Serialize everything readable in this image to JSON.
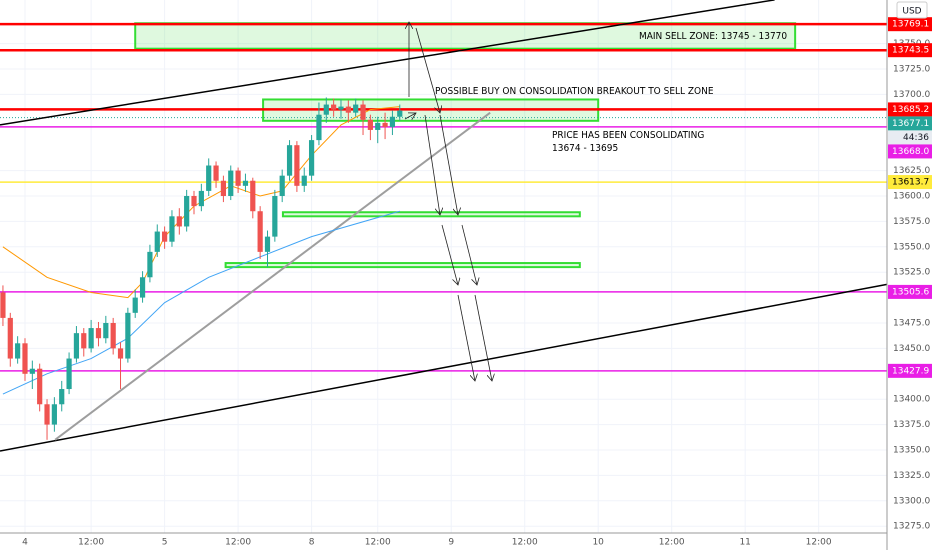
{
  "chart_data": {
    "type": "candlestick",
    "currency": "USD",
    "x": [
      0,
      1,
      2,
      3,
      4,
      5,
      6,
      7,
      8,
      9,
      10,
      11,
      12,
      13,
      14,
      15,
      16,
      17,
      18,
      19,
      20,
      21,
      22,
      23,
      24,
      25,
      26,
      27,
      28,
      29,
      30,
      31,
      32,
      33,
      34,
      35,
      36,
      37,
      38,
      39,
      40,
      41,
      42,
      43,
      44,
      45,
      46,
      47,
      48,
      49,
      50,
      51,
      52,
      53,
      54
    ],
    "open": [
      13505,
      13480,
      13440,
      13455,
      13425,
      13430,
      13395,
      13375,
      13395,
      13410,
      13440,
      13465,
      13450,
      13470,
      13460,
      13475,
      13450,
      13440,
      13485,
      13500,
      13520,
      13545,
      13565,
      13555,
      13580,
      13570,
      13600,
      13590,
      13605,
      13630,
      13615,
      13600,
      13625,
      13610,
      13615,
      13585,
      13545,
      13560,
      13600,
      13620,
      13650,
      13610,
      13620,
      13655,
      13680,
      13690,
      13685,
      13688,
      13682,
      13690,
      13675,
      13665,
      13672,
      13668,
      13678
    ],
    "high": [
      13512,
      13485,
      13462,
      13460,
      13438,
      13435,
      13400,
      13402,
      13418,
      13446,
      13472,
      13470,
      13478,
      13476,
      13482,
      13480,
      13456,
      13490,
      13508,
      13526,
      13552,
      13572,
      13570,
      13586,
      13588,
      13606,
      13605,
      13612,
      13637,
      13634,
      13620,
      13630,
      13628,
      13622,
      13618,
      13590,
      13566,
      13606,
      13626,
      13655,
      13654,
      13628,
      13660,
      13692,
      13697,
      13696,
      13695,
      13694,
      13696,
      13694,
      13680,
      13678,
      13682,
      13684,
      13690
    ],
    "low": [
      13472,
      13432,
      13435,
      13418,
      13410,
      13388,
      13360,
      13368,
      13388,
      13405,
      13436,
      13442,
      13446,
      13452,
      13455,
      13444,
      13410,
      13436,
      13480,
      13495,
      13515,
      13540,
      13548,
      13550,
      13562,
      13565,
      13582,
      13585,
      13600,
      13608,
      13594,
      13596,
      13603,
      13604,
      13578,
      13538,
      13530,
      13555,
      13594,
      13615,
      13604,
      13604,
      13615,
      13650,
      13672,
      13678,
      13676,
      13672,
      13678,
      13660,
      13655,
      13652,
      13656,
      13660,
      13674
    ],
    "close": [
      13480,
      13440,
      13455,
      13425,
      13430,
      13395,
      13375,
      13395,
      13410,
      13440,
      13465,
      13450,
      13470,
      13460,
      13475,
      13450,
      13440,
      13485,
      13500,
      13520,
      13545,
      13565,
      13555,
      13580,
      13570,
      13600,
      13590,
      13605,
      13630,
      13615,
      13600,
      13625,
      13610,
      13615,
      13585,
      13545,
      13560,
      13600,
      13620,
      13650,
      13610,
      13620,
      13655,
      13680,
      13690,
      13685,
      13688,
      13682,
      13690,
      13675,
      13665,
      13672,
      13668,
      13678,
      13684
    ],
    "up_color": "#26a69a",
    "down_color": "#ef5350",
    "lines": [
      {
        "color": "#ff9800",
        "x": [
          0,
          6,
          12,
          17,
          19,
          22,
          26,
          31,
          35,
          38,
          42,
          46,
          50,
          54
        ],
        "values": [
          13550,
          13520,
          13505,
          13500,
          13515,
          13560,
          13590,
          13610,
          13600,
          13605,
          13640,
          13670,
          13685,
          13688
        ]
      },
      {
        "color": "#42a5f5",
        "x": [
          0,
          6,
          12,
          17,
          22,
          28,
          35,
          42,
          54
        ],
        "values": [
          13405,
          13425,
          13440,
          13460,
          13495,
          13520,
          13540,
          13560,
          13585
        ]
      }
    ],
    "trendlines": [
      {
        "color": "#000000",
        "x": [
          -0.4,
          105
        ],
        "y": [
          13670,
          13793
        ]
      },
      {
        "color": "#000000",
        "x": [
          -0.4,
          120.3
        ],
        "y": [
          13349,
          13513
        ]
      },
      {
        "color": "#9e9e9e",
        "x": [
          7.1,
          66.3
        ],
        "y": [
          13360,
          13682
        ]
      }
    ],
    "zones": [
      {
        "x": [
          18,
          107.8
        ],
        "range": [
          13745,
          13770
        ],
        "label": "MAIN SELL ZONE: 13745 - 13770"
      },
      {
        "x": [
          35.4,
          81
        ],
        "range": [
          13674,
          13695
        ]
      },
      {
        "x": [
          38.1,
          78.5
        ],
        "range": [
          13580,
          13584
        ]
      },
      {
        "x": [
          30.3,
          78.5
        ],
        "range": [
          13530,
          13534
        ]
      }
    ],
    "price_lines": [
      {
        "value": 13769.1,
        "color": "#ff0000"
      },
      {
        "value": 13743.5,
        "color": "#ff0000"
      },
      {
        "value": 13685.2,
        "color": "#ff0000"
      },
      {
        "value": 13677.1,
        "color": "#26a69a",
        "dotted": true
      },
      {
        "value": 13668,
        "label": "13668.0",
        "color": "#e91ee6"
      },
      {
        "value": 13613.7,
        "color": "#ffeb3b"
      },
      {
        "value": 13505.6,
        "color": "#e91ee6"
      },
      {
        "value": 13427.9,
        "color": "#e91ee6"
      }
    ],
    "countdown": "44:36",
    "annotations": [
      "POSSIBLE BUY ON CONSOLIDATION BREAKOUT TO SELL ZONE",
      "PRICE HAS BEEN CONSOLIDATING",
      "13674 - 13695"
    ],
    "xlim": [
      -0.4,
      120.3
    ],
    "ylim": [
      13268.3,
      13792.9
    ],
    "xticks": [
      {
        "value": 3,
        "label": "4"
      },
      {
        "value": 12,
        "label": "12:00"
      },
      {
        "value": 22,
        "label": "5"
      },
      {
        "value": 32,
        "label": "12:00"
      },
      {
        "value": 42,
        "label": "8"
      },
      {
        "value": 51,
        "label": "12:00"
      },
      {
        "value": 61,
        "label": "9"
      },
      {
        "value": 71,
        "label": "12:00"
      },
      {
        "value": 81,
        "label": "10"
      },
      {
        "value": 91,
        "label": "12:00"
      },
      {
        "value": 101,
        "label": "11"
      },
      {
        "value": 111,
        "label": "12:00"
      }
    ],
    "yticks": [
      {
        "value": 13275,
        "label": "13275.0"
      },
      {
        "value": 13300,
        "label": "13300.0"
      },
      {
        "value": 13325,
        "label": "13325.0"
      },
      {
        "value": 13350,
        "label": "13350.0"
      },
      {
        "value": 13375,
        "label": "13375.0"
      },
      {
        "value": 13400,
        "label": "13400.0"
      },
      {
        "value": 13450,
        "label": "13450.0"
      },
      {
        "value": 13475,
        "label": "13475.0"
      },
      {
        "value": 13525,
        "label": "13525.0"
      },
      {
        "value": 13550,
        "label": "13550.0"
      },
      {
        "value": 13575,
        "label": "13575.0"
      },
      {
        "value": 13600,
        "label": "13600.0"
      },
      {
        "value": 13625,
        "label": "13625.0"
      },
      {
        "value": 13700,
        "label": "13700.0"
      },
      {
        "value": 13725,
        "label": "13725.0"
      },
      {
        "value": 13750,
        "label": "13750.0"
      }
    ],
    "grid": true
  }
}
